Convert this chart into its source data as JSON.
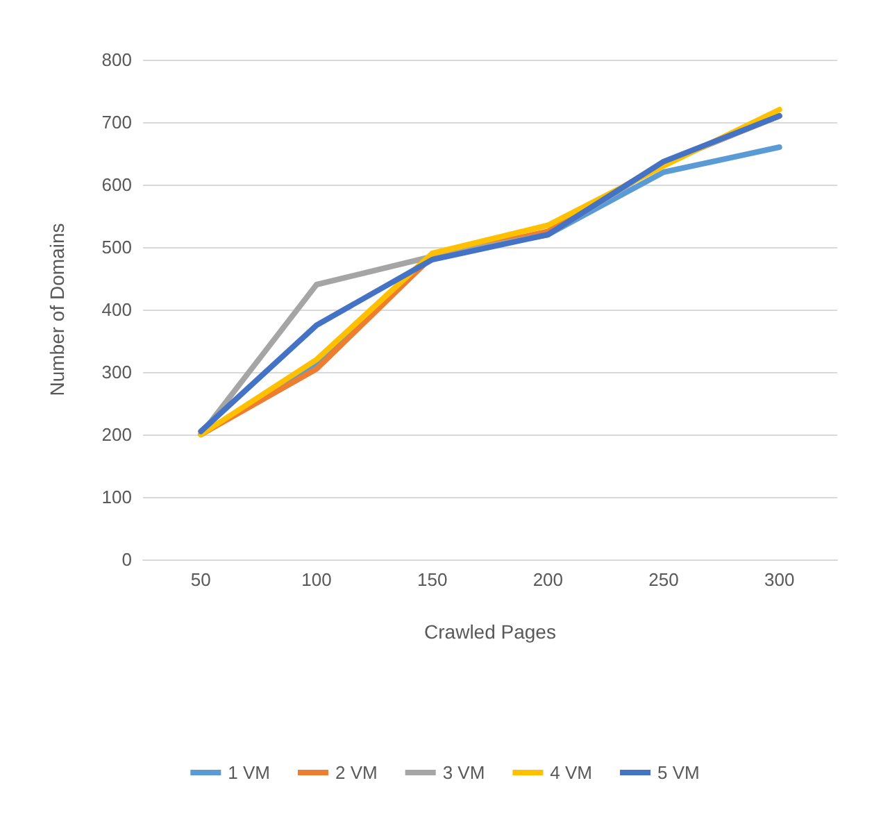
{
  "chart_data": {
    "type": "line",
    "xlabel": "Crawled Pages",
    "ylabel": "Number of Domains",
    "categories": [
      "50",
      "100",
      "150",
      "200",
      "250",
      "300"
    ],
    "ylim": [
      0,
      800
    ],
    "yticks": [
      0,
      100,
      200,
      300,
      400,
      500,
      600,
      700,
      800
    ],
    "grid": "y",
    "legend": "bottom",
    "marker": "none",
    "line_style": "solid",
    "series": [
      {
        "name": "1 VM",
        "color": "#5b9bd5",
        "values": [
          200,
          310,
          485,
          520,
          620,
          660
        ]
      },
      {
        "name": "2 VM",
        "color": "#ed7d31",
        "values": [
          200,
          305,
          485,
          525,
          635,
          710
        ]
      },
      {
        "name": "3 VM",
        "color": "#a5a5a5",
        "values": [
          200,
          440,
          485,
          520,
          635,
          710
        ]
      },
      {
        "name": "4 VM",
        "color": "#ffc000",
        "values": [
          200,
          320,
          490,
          535,
          630,
          720
        ]
      },
      {
        "name": "5 VM",
        "color": "#4472c4",
        "values": [
          205,
          375,
          480,
          520,
          637,
          710
        ]
      }
    ]
  }
}
